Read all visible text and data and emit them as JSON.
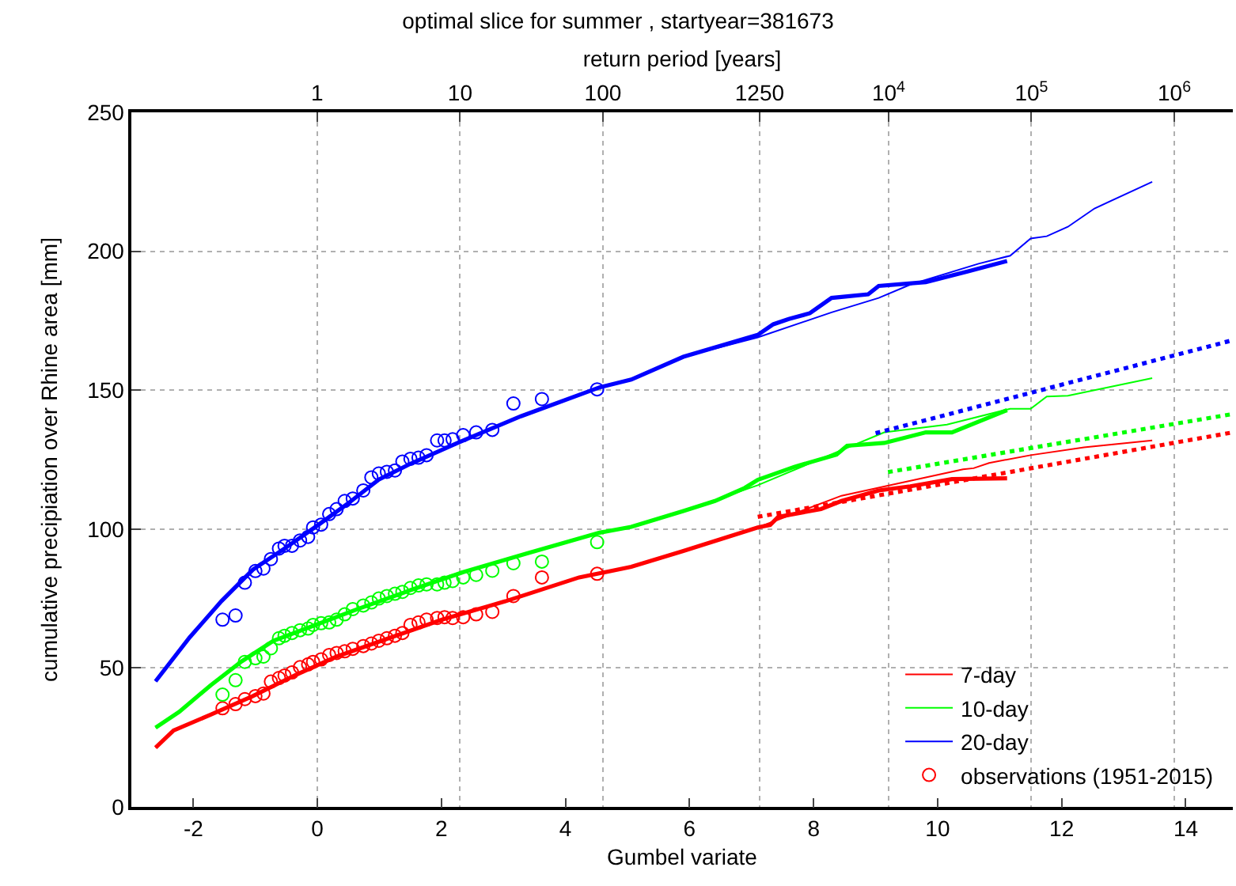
{
  "chart_data": {
    "type": "line",
    "title": "optimal slice for summer , startyear=381673",
    "xlabel": "Gumbel variate",
    "ylabel": "cumulative precipiation over Rhine area [mm]",
    "x2label": "return period [years]",
    "xlim": [
      -3,
      14.76
    ],
    "xticks": [
      -2,
      0,
      2,
      4,
      6,
      8,
      10,
      12,
      14
    ],
    "log": "x2",
    "x2lim": [
      0.05,
      2570000
    ],
    "x2ticks": [
      1,
      10,
      100,
      1250,
      {
        "value": 10000,
        "label": "10$^{4}$"
      },
      {
        "value": 100000,
        "label": "10$^{5}$"
      },
      {
        "value": 1000000,
        "label": "10$^{6}$"
      }
    ],
    "ylim": [
      0,
      250
    ],
    "yticks": [
      0,
      50,
      100,
      150,
      200,
      250
    ],
    "grid": true,
    "legend": "bottom right",
    "series": [
      {
        "name": "7-day",
        "color": "#ff0000",
        "marker": "none",
        "line_style": "solid",
        "x": [
          -2.61,
          -2.32,
          -1.72,
          -1.04,
          -0.36,
          0.31,
          1.16,
          2.01,
          3.03,
          4.22,
          5.06,
          5.9,
          7.1,
          8.45,
          9.81,
          10.41,
          10.58,
          10.83,
          11.5,
          12.36,
          13.46
        ],
        "values": [
          21.3,
          27.5,
          33.2,
          39.9,
          47.4,
          54.1,
          60.8,
          67.4,
          74,
          82.6,
          86.4,
          92.1,
          100.6,
          112,
          118.6,
          121.5,
          121.9,
          123.8,
          126.6,
          129.4,
          131.9
        ]
      },
      {
        "name": "10-day",
        "color": "#00ff00",
        "marker": "none",
        "line_style": "solid",
        "x": [
          -2.61,
          -2.23,
          -1.72,
          -1.22,
          -0.71,
          -0.03,
          0.65,
          1.5,
          2.35,
          3.36,
          4.55,
          5.06,
          5.9,
          7.1,
          9.14,
          10.15,
          11.17,
          11.5,
          11.76,
          12.1,
          13.46
        ],
        "values": [
          28.5,
          34.2,
          43.8,
          52.4,
          59.8,
          65.5,
          71.2,
          78,
          84.5,
          91.1,
          98.7,
          100.8,
          106.5,
          115.8,
          134.8,
          137.6,
          143.3,
          143.3,
          147.7,
          148,
          154.3
        ]
      },
      {
        "name": "20-day",
        "color": "#0000ff",
        "marker": "none",
        "line_style": "solid",
        "x": [
          -2.61,
          -2.06,
          -1.55,
          -1.04,
          -0.53,
          -0.03,
          0.48,
          0.99,
          1.5,
          2.26,
          3.28,
          4.55,
          5.06,
          5.9,
          7.1,
          8.29,
          9.05,
          9.56,
          10.66,
          11.17,
          11.5,
          11.76,
          12.1,
          12.53,
          13.46
        ],
        "values": [
          45.2,
          61,
          74,
          85.4,
          93,
          100.8,
          109,
          117.8,
          123.5,
          131,
          140.6,
          151,
          153.8,
          162,
          169,
          178,
          183.2,
          188,
          195.5,
          198.4,
          204.6,
          205.4,
          208.8,
          215.4,
          225
        ]
      },
      {
        "name": "observations (1951-2015)",
        "color": "#ff0000",
        "type": "scatter",
        "marker": "circle",
        "x": [
          -1.53,
          -1.32,
          -1.17,
          -1.0,
          -0.87,
          -0.75,
          -0.62,
          -0.53,
          -0.41,
          -0.28,
          -0.15,
          -0.07,
          0.06,
          0.19,
          0.31,
          0.44,
          0.57,
          0.74,
          0.87,
          0.99,
          1.12,
          1.25,
          1.37,
          1.5,
          1.63,
          1.76,
          1.93,
          2.05,
          2.18,
          2.35,
          2.56,
          2.82,
          3.16,
          3.62,
          4.51
        ],
        "values": [
          35.5,
          37.0,
          38.8,
          39.9,
          40.8,
          45.1,
          46.4,
          47.3,
          48.4,
          50.3,
          51.3,
          52.2,
          53.1,
          54.7,
          55.4,
          56.0,
          56.9,
          57.9,
          58.8,
          59.8,
          60.7,
          61.6,
          62.6,
          65.5,
          66.4,
          67.4,
          68.0,
          68.3,
          68.0,
          68.3,
          69.3,
          70.2,
          75.9,
          82.6,
          83.9
        ]
      },
      {
        "color": "#00ff00",
        "type": "scatter",
        "marker": "circle",
        "x": [
          -1.53,
          -1.32,
          -1.17,
          -1.0,
          -0.87,
          -0.75,
          -0.62,
          -0.53,
          -0.41,
          -0.28,
          -0.15,
          -0.07,
          0.06,
          0.19,
          0.31,
          0.44,
          0.57,
          0.74,
          0.87,
          0.99,
          1.12,
          1.25,
          1.37,
          1.5,
          1.63,
          1.76,
          1.93,
          2.05,
          2.18,
          2.35,
          2.56,
          2.82,
          3.16,
          3.62,
          4.51
        ],
        "values": [
          40.4,
          45.6,
          52.2,
          53.5,
          54.1,
          57.1,
          60.7,
          61.6,
          62.6,
          63.6,
          64.2,
          65.5,
          66.1,
          66.4,
          67.4,
          69.3,
          71.2,
          72.5,
          73.6,
          75.0,
          75.9,
          76.7,
          77.4,
          78.8,
          79.7,
          80.1,
          80.1,
          80.7,
          81.3,
          82.6,
          83.5,
          85.0,
          87.7,
          88.3,
          95.3
        ]
      },
      {
        "color": "#0000ff",
        "type": "scatter",
        "marker": "circle",
        "x": [
          -1.53,
          -1.32,
          -1.17,
          -1.0,
          -0.87,
          -0.75,
          -0.62,
          -0.53,
          -0.41,
          -0.28,
          -0.15,
          -0.07,
          0.06,
          0.19,
          0.31,
          0.44,
          0.57,
          0.74,
          0.87,
          0.99,
          1.12,
          1.25,
          1.37,
          1.5,
          1.63,
          1.76,
          1.93,
          2.05,
          2.18,
          2.35,
          2.56,
          2.82,
          3.16,
          3.62,
          4.51
        ],
        "values": [
          67.4,
          68.9,
          80.7,
          84.9,
          85.8,
          89.2,
          93.0,
          94.0,
          94.0,
          95.9,
          97.2,
          100.6,
          101.6,
          105.4,
          107.2,
          110.1,
          111.0,
          113.9,
          118.6,
          120.0,
          120.6,
          121.1,
          124.3,
          125.3,
          125.7,
          126.6,
          131.9,
          131.9,
          132.3,
          133.8,
          134.8,
          135.7,
          145.2,
          146.8,
          150.3
        ]
      },
      {
        "color": "#ff0000",
        "marker": "none",
        "line_style": "solid",
        "x": [
          -2.61,
          -2.32,
          -1.72,
          -1.04,
          -0.36,
          0.31,
          1.16,
          2.01,
          3.03,
          4.22,
          5.06,
          5.9,
          7.1,
          7.3,
          7.43,
          8.12,
          8.45,
          9.05,
          9.56,
          10.23,
          11.12
        ],
        "values": [
          21.3,
          27.5,
          33.2,
          39.9,
          47.4,
          54.1,
          60.8,
          67.4,
          74,
          82.6,
          86.4,
          92.1,
          100.6,
          101.5,
          104.4,
          107.2,
          110.1,
          113.9,
          115.4,
          118,
          118.3
        ]
      },
      {
        "color": "#00ff00",
        "marker": "none",
        "line_style": "solid",
        "x": [
          -2.61,
          -2.23,
          -1.72,
          -1.22,
          -0.71,
          -0.03,
          0.65,
          1.5,
          2.35,
          3.36,
          4.55,
          5.06,
          5.9,
          6.41,
          6.89,
          7.1,
          7.69,
          8.37,
          8.54,
          9.14,
          9.81,
          10.23,
          11.12
        ],
        "values": [
          28.5,
          34.2,
          43.8,
          52.4,
          59.8,
          65.5,
          71.2,
          78,
          84.5,
          91.1,
          98.7,
          100.8,
          106.5,
          110.1,
          114.8,
          117.7,
          122.4,
          126.8,
          130,
          131,
          134.8,
          134.8,
          142.8
        ]
      },
      {
        "color": "#0000ff",
        "marker": "none",
        "line_style": "solid",
        "x": [
          -2.61,
          -2.06,
          -1.55,
          -1.04,
          -0.53,
          -0.03,
          0.48,
          0.99,
          1.5,
          2.26,
          3.28,
          4.55,
          5.06,
          5.9,
          7.1,
          7.35,
          7.6,
          7.94,
          8.29,
          8.88,
          9.05,
          9.81,
          10.48,
          11.12
        ],
        "values": [
          45.2,
          61,
          74,
          85.4,
          93,
          100.8,
          109,
          117.8,
          123.5,
          131,
          140.6,
          151,
          153.8,
          162,
          169.9,
          173.7,
          175.6,
          177.7,
          183.2,
          184.5,
          187.5,
          188.9,
          192.7,
          196.5
        ]
      },
      {
        "color": "#ff0000",
        "marker": "none",
        "line_style": "dotted",
        "x": [
          7.1,
          14.76
        ],
        "values": [
          104.4,
          134.8
        ]
      },
      {
        "color": "#00ff00",
        "marker": "none",
        "line_style": "dotted",
        "x": [
          9.2,
          14.76
        ],
        "values": [
          120.5,
          141.4
        ]
      },
      {
        "color": "#0000ff",
        "marker": "none",
        "line_style": "dotted",
        "x": [
          9.0,
          14.76
        ],
        "values": [
          134.5,
          168
        ]
      }
    ]
  }
}
